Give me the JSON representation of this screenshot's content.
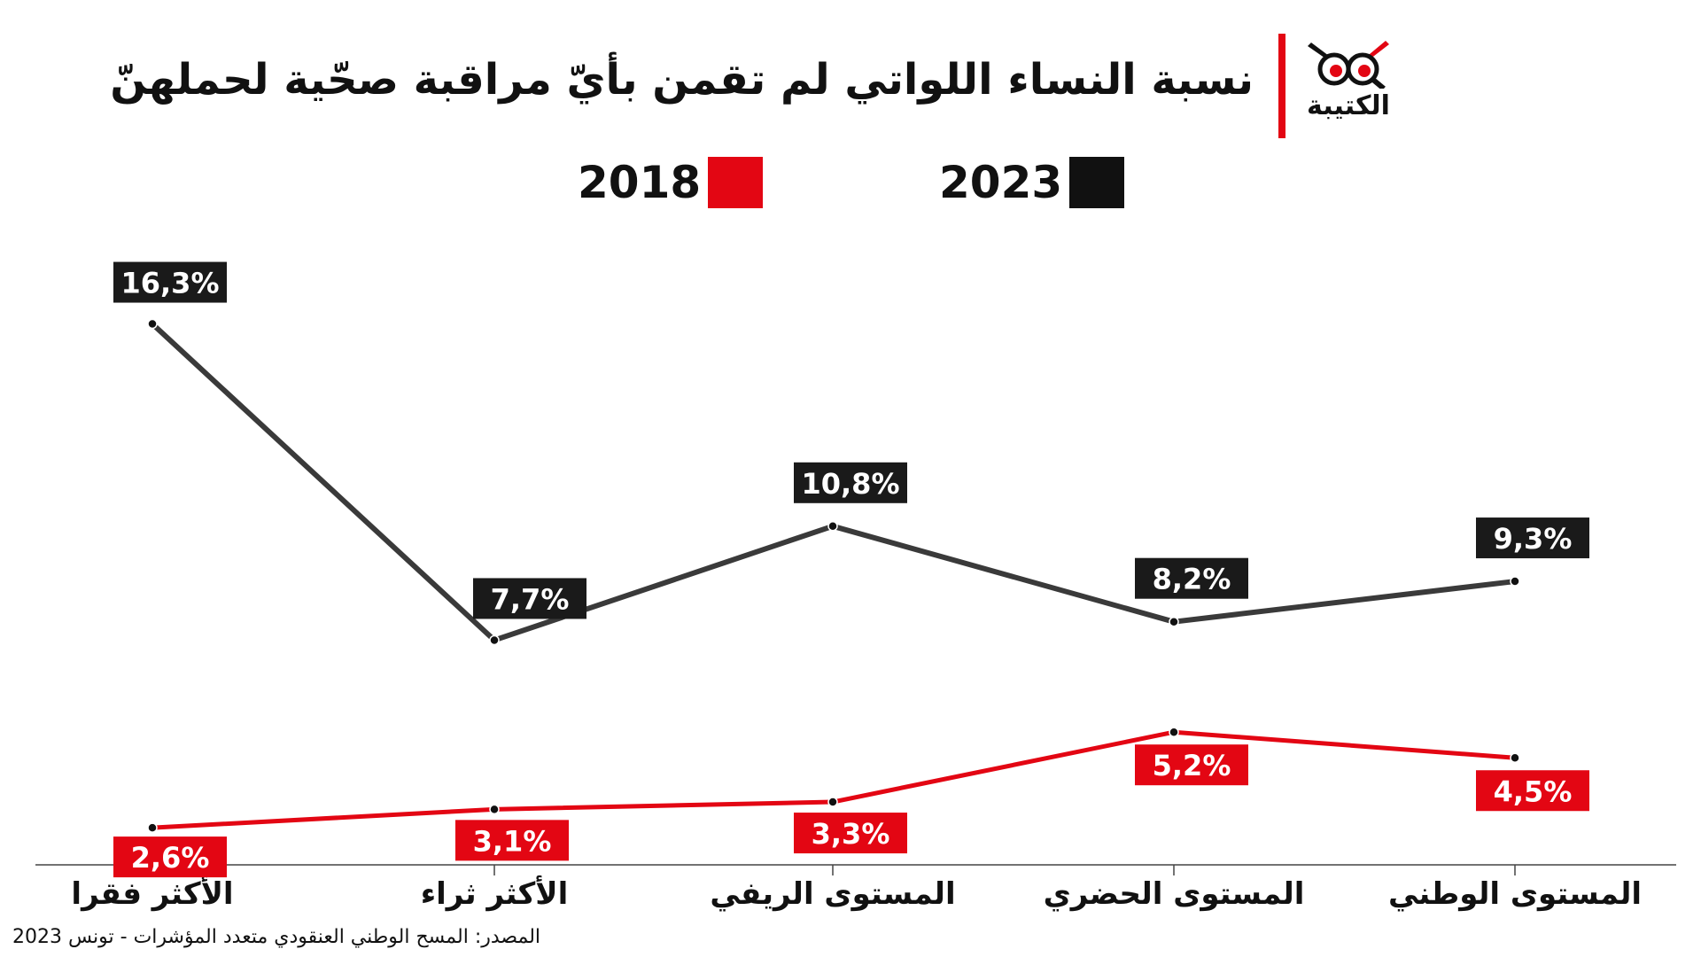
{
  "header": {
    "title": "نسبة النساء اللواتي لم تقمن بأيّ مراقبة صحّية لحملهنّ",
    "logo_text": "الكتيبة",
    "brand_color": "#e30613"
  },
  "legend": [
    {
      "label": "2023",
      "color": "#111111"
    },
    {
      "label": "2018",
      "color": "#e30613"
    }
  ],
  "source": "المصدر: المسح الوطني العنقودي متعدد المؤشرات - تونس 2023",
  "chart_data": {
    "type": "line",
    "categories": [
      "الأكثر فقرا",
      "الأكثر ثراء",
      "المستوى الريفي",
      "المستوى الحضري",
      "المستوى الوطني"
    ],
    "series": [
      {
        "name": "2023",
        "color": "#111111",
        "values": [
          16.3,
          7.7,
          10.8,
          8.2,
          9.3
        ],
        "labels": [
          "16,3%",
          "7,7%",
          "10,8%",
          "8,2%",
          "9,3%"
        ]
      },
      {
        "name": "2018",
        "color": "#e30613",
        "values": [
          2.6,
          3.1,
          3.3,
          5.2,
          4.5
        ],
        "labels": [
          "2,6%",
          "3,1%",
          "3,3%",
          "5,2%",
          "4,5%"
        ]
      }
    ],
    "ylim": [
      0,
      18
    ],
    "grid": false,
    "legend_position": "top"
  }
}
